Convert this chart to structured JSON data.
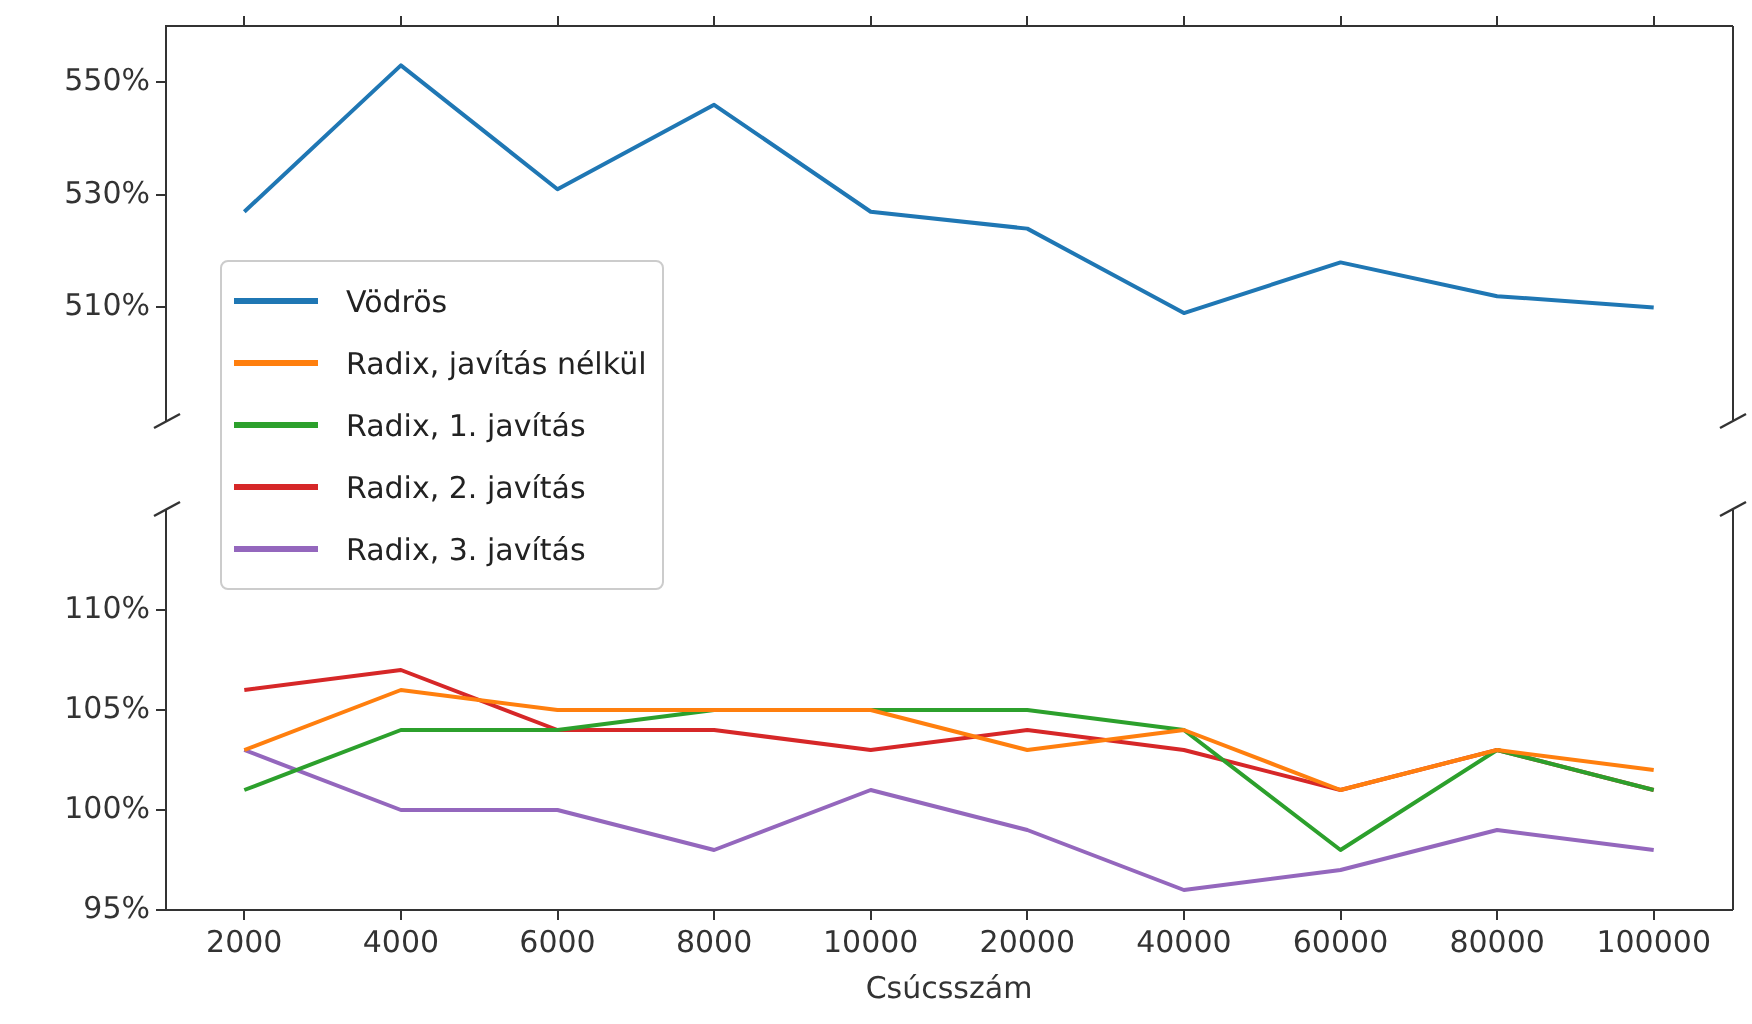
{
  "chart_data": [
    {
      "type": "line",
      "categories": [
        "2000",
        "4000",
        "6000",
        "8000",
        "10000",
        "20000",
        "40000",
        "60000",
        "80000",
        "100000"
      ],
      "ylim": [
        490,
        560
      ],
      "yticks": [
        {
          "value": 510,
          "label": "510%"
        },
        {
          "value": 530,
          "label": "530%"
        },
        {
          "value": 550,
          "label": "550%"
        }
      ],
      "tick_labels": "y",
      "legend": "left",
      "series": [
        {
          "name": "Vödrös",
          "color": "#1f77b4",
          "values": [
            527,
            553,
            531,
            546,
            527,
            524,
            509,
            518,
            512,
            510
          ]
        }
      ]
    },
    {
      "type": "line",
      "categories": [
        "2000",
        "4000",
        "6000",
        "8000",
        "10000",
        "20000",
        "40000",
        "60000",
        "80000",
        "100000"
      ],
      "xlabel": "Csúcsszám",
      "ylim": [
        95,
        115
      ],
      "yticks": [
        {
          "value": 95,
          "label": "95%"
        },
        {
          "value": 100,
          "label": "100%"
        },
        {
          "value": 105,
          "label": "105%"
        },
        {
          "value": 110,
          "label": "110%"
        }
      ],
      "legend": "left",
      "series": [
        {
          "name": "Radix, javítás nélkül",
          "color": "#ff7f0e",
          "values": [
            103,
            106,
            105,
            105,
            105,
            103,
            104,
            101,
            103,
            102
          ]
        },
        {
          "name": "Radix, 1. javítás",
          "color": "#2ca02c",
          "values": [
            101,
            104,
            104,
            105,
            105,
            105,
            104,
            98,
            103,
            101
          ]
        },
        {
          "name": "Radix, 2. javítás",
          "color": "#d62728",
          "values": [
            106,
            107,
            104,
            104,
            103,
            104,
            103,
            101,
            103,
            101
          ]
        },
        {
          "name": "Radix, 3. javítás",
          "color": "#9467bd",
          "values": [
            103,
            100,
            100,
            98,
            101,
            99,
            96,
            97,
            99,
            98
          ]
        }
      ]
    }
  ]
}
